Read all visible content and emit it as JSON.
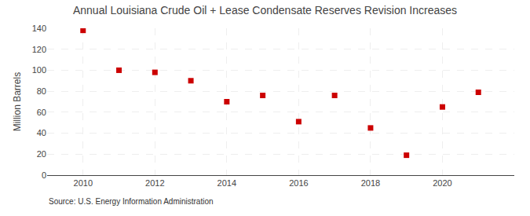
{
  "chart_data": {
    "type": "scatter",
    "title": "Annual Louisiana Crude Oil + Lease Condensate Reserves Revision Increases",
    "ylabel": "Million Barrels",
    "annotations": [
      "Source: U.S. Energy Information Administration"
    ],
    "x": [
      2010,
      2011,
      2012,
      2013,
      2014,
      2015,
      2016,
      2017,
      2018,
      2019,
      2020,
      2021
    ],
    "values": [
      138,
      100,
      98,
      90,
      70,
      76,
      51,
      76,
      45,
      19,
      65,
      79
    ],
    "color": "#cc0000",
    "marker": "square",
    "xlim": [
      2009.0,
      2022.0
    ],
    "xticks": [
      2010,
      2012,
      2014,
      2016,
      2018,
      2020
    ],
    "ylim": [
      0,
      140
    ],
    "yticks": [
      0,
      20,
      40,
      60,
      80,
      100,
      120,
      140
    ],
    "grid": true
  }
}
